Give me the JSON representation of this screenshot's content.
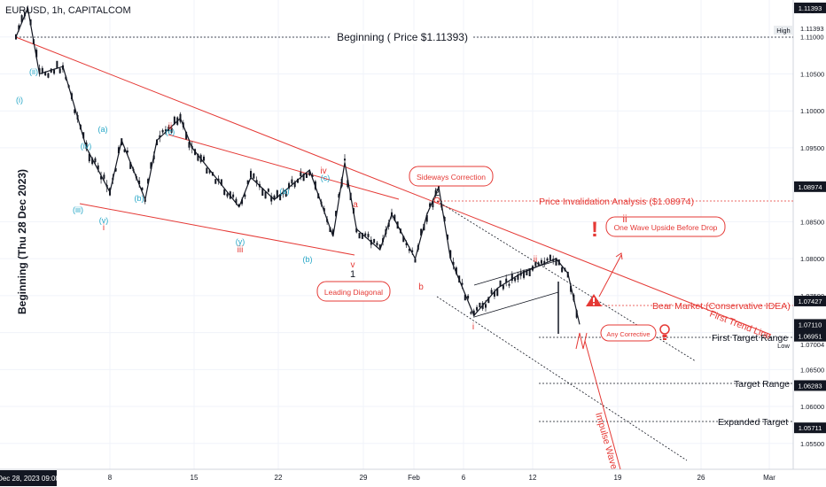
{
  "symbol": "EURUSD, 1h, CAPITALCOM",
  "currency": "USD",
  "x_axis": {
    "current_date": "Dec 28, 2023  09:00",
    "tick_labels": [
      "8",
      "15",
      "22",
      "29",
      "Feb",
      "6",
      "12",
      "19",
      "26",
      "Mar"
    ]
  },
  "price_axis": {
    "ticks": [
      "1.11000",
      "1.10500",
      "1.10000",
      "1.09500",
      "1.08500",
      "1.08000",
      "1.07500",
      "1.07000",
      "1.06500",
      "1.06000",
      "1.05500"
    ],
    "badges": [
      {
        "label": "1.11393",
        "style": "dark"
      },
      {
        "label": "1.08974",
        "style": "dark"
      },
      {
        "label": "1.07427",
        "style": "dark"
      },
      {
        "label": "1.07110",
        "style": "dark"
      },
      {
        "label": "42:54",
        "style": "dark"
      },
      {
        "label": "1.06951",
        "style": "dark"
      },
      {
        "label": "1.06283",
        "style": "dark"
      },
      {
        "label": "1.05711",
        "style": "dark"
      }
    ],
    "high_label": "High",
    "low_label": "Low",
    "low_value": "1.07004",
    "high_value": "1.11393"
  },
  "colors": {
    "red": "#e53935",
    "cyan": "#26a7c7",
    "black": "#131722",
    "grid": "#d1d4dc"
  },
  "annotations": {
    "beginning_line": "Beginning ( Price $1.11393)",
    "vertical_title": "Beginning (Thu 28 Dec 2023)",
    "invalidation": "Price Invalidation Analysis ($1.08974)",
    "bear_market": "Bear Market (Conservative IDEA)",
    "first_trend_line": "First Trend Line",
    "first_target": "First Target Range",
    "target_range": "Target Range",
    "expanded_target": "Expanded Target",
    "impulse_wave": "Impulse Wave",
    "sideways_correction": "Sideways Correction",
    "leading_diagonal": "Leading Diagonal",
    "one_wave_upside": "One Wave Upside Before Drop",
    "any_corrective": "Any Corrective",
    "exclamation": "!"
  },
  "wave_labels_cyan": [
    "(i)",
    "(ii)",
    "(iii)",
    "(iv)",
    "(v)",
    "(a)",
    "(b)",
    "(c)",
    "(y)",
    "(a)",
    "(b)",
    "(c)"
  ],
  "wave_labels_red": [
    "i",
    "ii",
    "iii",
    "iv",
    "v",
    "a",
    "b",
    "i",
    "ii",
    "ii"
  ],
  "wave_labels_black": [
    "1",
    "2"
  ],
  "chart_data": {
    "type": "candlestick",
    "symbol": "EURUSD",
    "timeframe": "1h",
    "x_range": [
      "2023-12-28",
      "2024-03-01"
    ],
    "ylim": [
      1.0515,
      1.115
    ],
    "close_path": [
      {
        "x": "2023-12-28",
        "y": 1.11
      },
      {
        "x": "2023-12-29",
        "y": 1.1139
      },
      {
        "x": "2023-12-30",
        "y": 1.105
      },
      {
        "x": "2024-01-01",
        "y": 1.106
      },
      {
        "x": "2024-01-03",
        "y": 1.095
      },
      {
        "x": "2024-01-05",
        "y": 1.089
      },
      {
        "x": "2024-01-06",
        "y": 1.096
      },
      {
        "x": "2024-01-08",
        "y": 1.088
      },
      {
        "x": "2024-01-09",
        "y": 1.096
      },
      {
        "x": "2024-01-11",
        "y": 1.099
      },
      {
        "x": "2024-01-12",
        "y": 1.095
      },
      {
        "x": "2024-01-16",
        "y": 1.087
      },
      {
        "x": "2024-01-17",
        "y": 1.091
      },
      {
        "x": "2024-01-19",
        "y": 1.088
      },
      {
        "x": "2024-01-22",
        "y": 1.092
      },
      {
        "x": "2024-01-24",
        "y": 1.083
      },
      {
        "x": "2024-01-25",
        "y": 1.093
      },
      {
        "x": "2024-01-26",
        "y": 1.084
      },
      {
        "x": "2024-01-28",
        "y": 1.0812
      },
      {
        "x": "2024-01-29",
        "y": 1.086
      },
      {
        "x": "2024-01-31",
        "y": 1.08
      },
      {
        "x": "2024-02-01",
        "y": 1.086
      },
      {
        "x": "2024-02-02",
        "y": 1.0897
      },
      {
        "x": "2024-02-03",
        "y": 1.08
      },
      {
        "x": "2024-02-05",
        "y": 1.0723
      },
      {
        "x": "2024-02-07",
        "y": 1.076
      },
      {
        "x": "2024-02-09",
        "y": 1.078
      },
      {
        "x": "2024-02-12",
        "y": 1.08
      },
      {
        "x": "2024-02-13",
        "y": 1.078
      },
      {
        "x": "2024-02-14",
        "y": 1.0711
      }
    ],
    "levels": [
      {
        "name": "Beginning",
        "y": 1.11393
      },
      {
        "name": "Price Invalidation",
        "y": 1.08974
      },
      {
        "name": "Bear Market (Conservative IDEA)",
        "y": 1.07427
      },
      {
        "name": "Last Price",
        "y": 1.0711
      },
      {
        "name": "Low",
        "y": 1.07004
      },
      {
        "name": "First Target Range",
        "y": 1.06951
      },
      {
        "name": "Target Range",
        "y": 1.06283
      },
      {
        "name": "Expanded Target",
        "y": 1.05711
      }
    ]
  }
}
